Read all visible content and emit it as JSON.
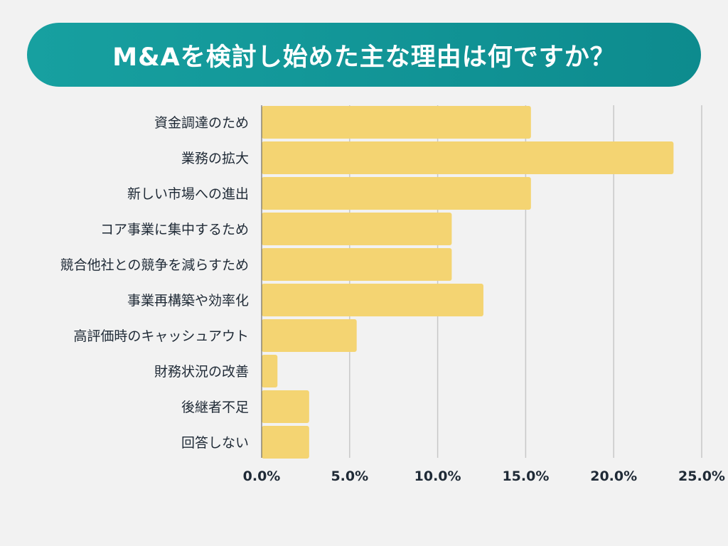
{
  "chart_data": {
    "type": "bar",
    "orientation": "horizontal",
    "title": "M&Aを検討し始めた主な理由は何ですか？",
    "categories": [
      "資金調達のため",
      "業務の拡大",
      "新しい市場への進出",
      "コア事業に集中するため",
      "競合他社との競争を減らすため",
      "事業再構築や効率化",
      "高評価時のキャッシュアウト",
      "財務状況の改善",
      "後継者不足",
      "回答しない"
    ],
    "values": [
      15.3,
      23.4,
      15.3,
      10.8,
      10.8,
      12.6,
      5.4,
      0.9,
      2.7,
      2.7
    ],
    "xlim": [
      0,
      25
    ],
    "xticks": [
      "0.0%",
      "5.0%",
      "10.0%",
      "15.0%",
      "20.0%",
      "25.0%"
    ],
    "xlabel": "",
    "ylabel": "",
    "grid": "vertical",
    "colors": {
      "bar": "#f4d472",
      "banner": "#12969a",
      "grid": "#c8c8c8",
      "text": "#1f2a36"
    }
  }
}
